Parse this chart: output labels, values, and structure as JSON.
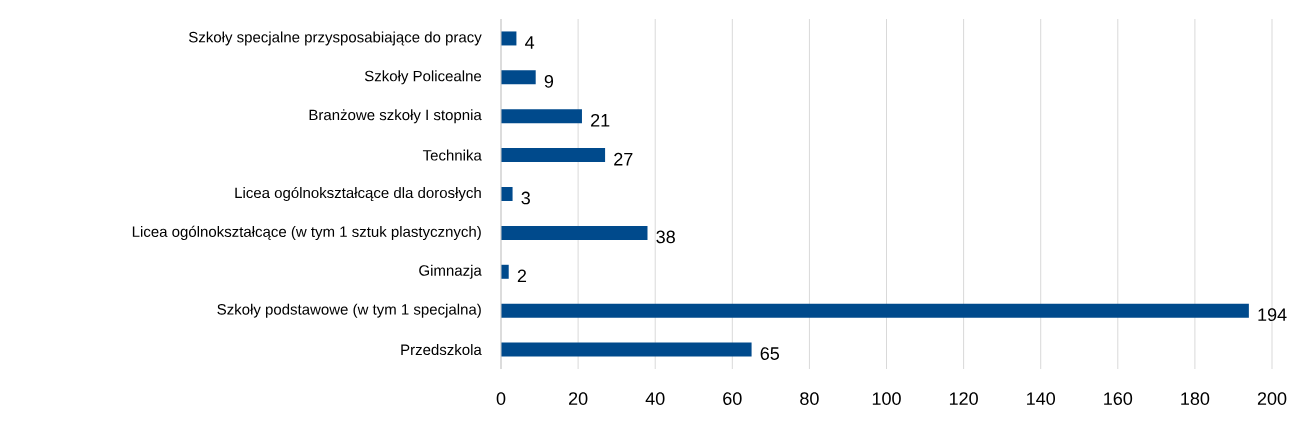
{
  "chart_data": {
    "type": "bar",
    "orientation": "horizontal",
    "categories": [
      "Szkoły specjalne przysposabiające do pracy",
      "Szkoły Policealne",
      "Branżowe szkoły I stopnia",
      "Technika",
      "Licea ogólnokształcące dla dorosłych",
      "Licea ogólnokształcące (w tym 1 sztuk plastycznych)",
      "Gimnazja",
      "Szkoły podstawowe (w tym 1 specjalna)",
      "Przedszkola"
    ],
    "values": [
      4,
      9,
      21,
      27,
      3,
      38,
      2,
      194,
      65
    ],
    "color": "#004a8c",
    "xlim": [
      0,
      200
    ],
    "xticks": [
      0,
      20,
      40,
      60,
      80,
      100,
      120,
      140,
      160,
      180,
      200
    ],
    "grid": "x",
    "data_labels": true
  }
}
